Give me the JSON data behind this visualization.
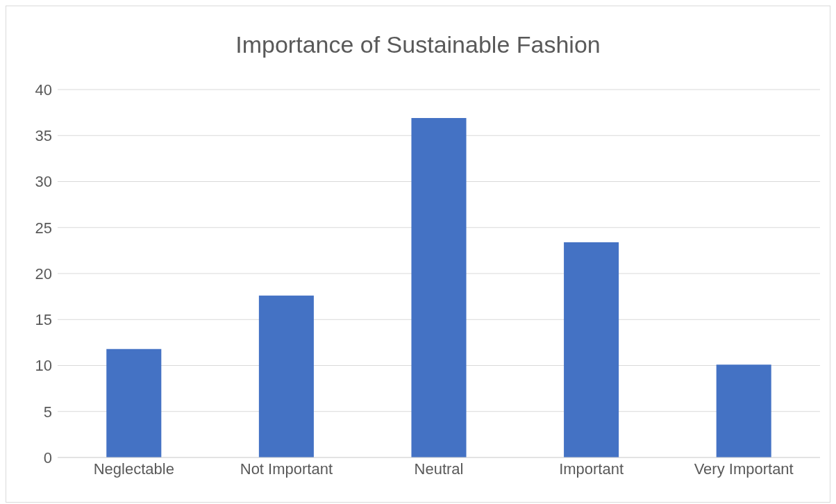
{
  "chart_data": {
    "type": "bar",
    "title": "Importance of Sustainable Fashion",
    "categories": [
      "Neglectable",
      "Not Important",
      "Neutral",
      "Important",
      "Very Important"
    ],
    "values": [
      11.8,
      17.6,
      36.9,
      23.4,
      10.1
    ],
    "color": "#4472c4",
    "ylim": [
      0,
      40
    ],
    "yticks": [
      0,
      5,
      10,
      15,
      20,
      25,
      30,
      35,
      40
    ],
    "grid": "y"
  }
}
